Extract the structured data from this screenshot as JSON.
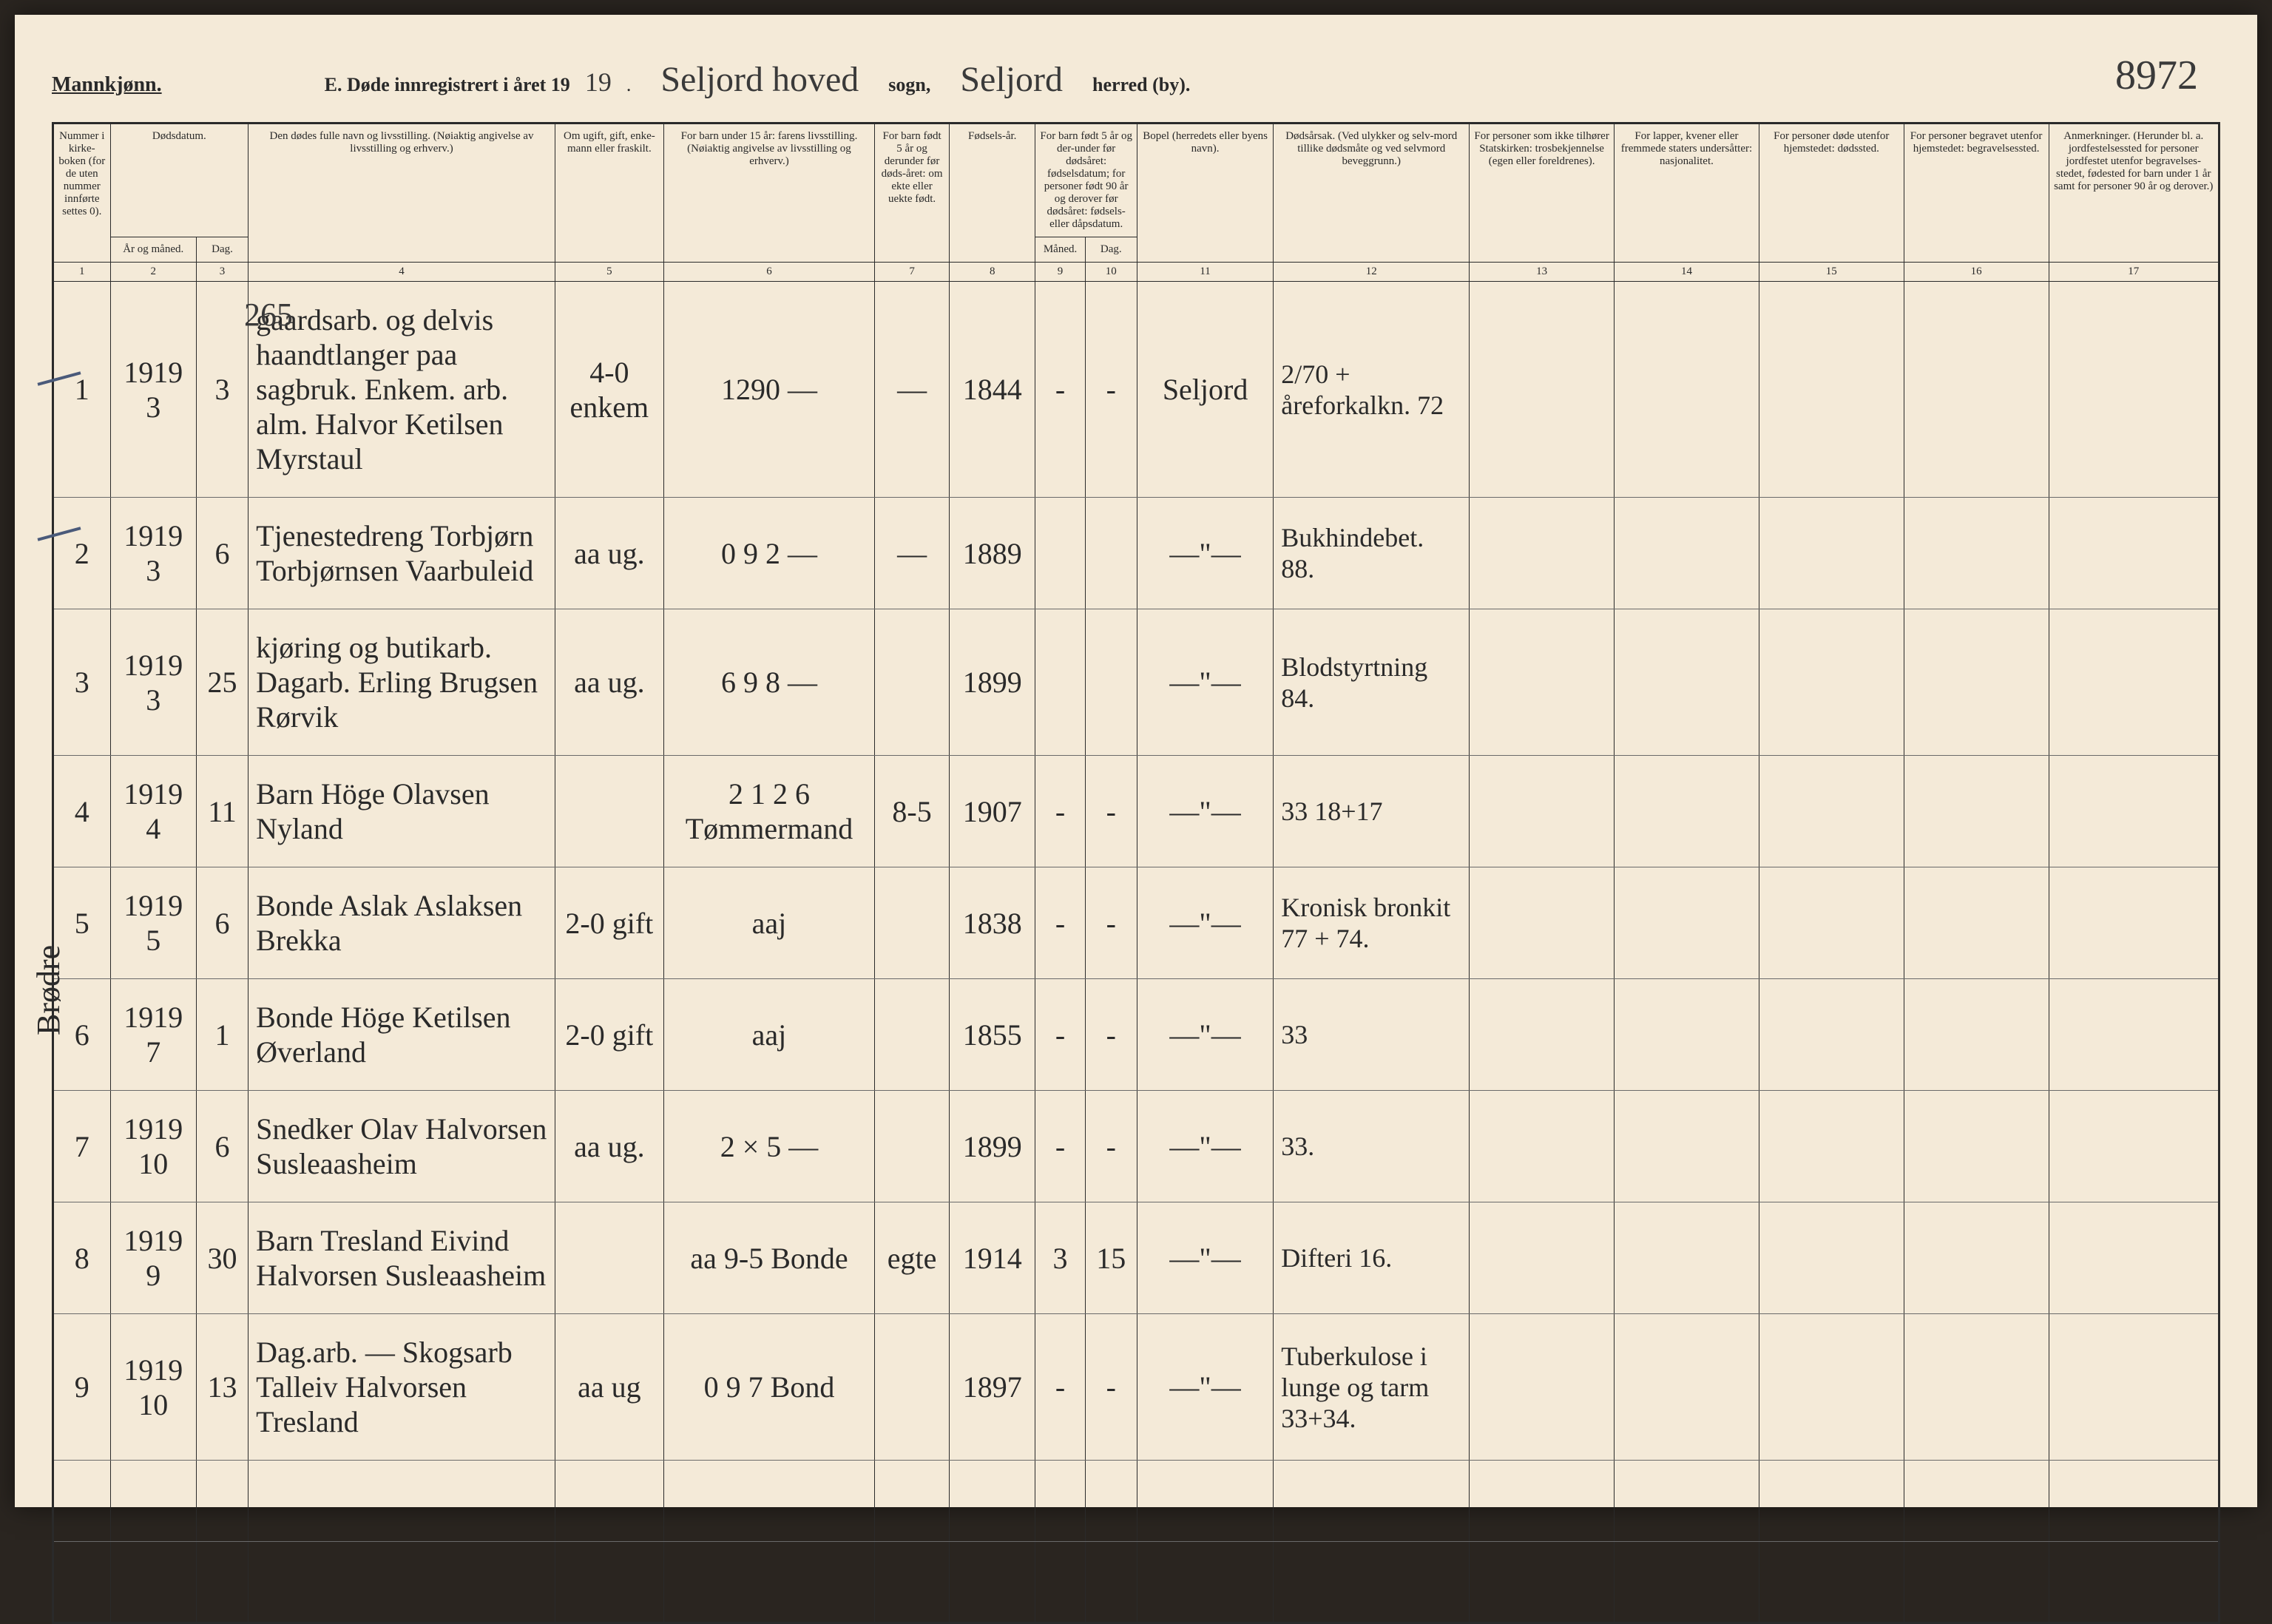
{
  "page_number": "8972",
  "side_annotation": "Brødre",
  "page_ref": "265",
  "header": {
    "gender": "Mannkjønn.",
    "title_prefix": "E.  Døde innregistrert i året 19",
    "year_suffix": "19",
    "punctuation": ".",
    "sogn_value": "Seljord hoved",
    "sogn_label": "sogn,",
    "herred_value": "Seljord",
    "herred_label": "herred (by)."
  },
  "columns": [
    {
      "num": "1",
      "label": "Nummer i kirke-boken (for de uten nummer innførte settes 0).",
      "width": "60"
    },
    {
      "num": "2",
      "label": "År og måned.",
      "width": "60"
    },
    {
      "num": "3",
      "label": "Dag.",
      "width": "55"
    },
    {
      "num": "4",
      "label": "Den dødes fulle navn og livsstilling. (Nøiaktig angivelse av livsstilling og erhverv.)",
      "width": "360"
    },
    {
      "num": "5",
      "label": "Om ugift, gift, enke-mann eller fraskilt.",
      "width": "80"
    },
    {
      "num": "6",
      "label": "For barn under 15 år: farens livsstilling. (Nøiaktig angivelse av livsstilling og erhverv.)",
      "width": "210"
    },
    {
      "num": "7",
      "label": "For barn født 5 år og derunder før døds-året: om ekte eller uekte født.",
      "width": "80"
    },
    {
      "num": "8",
      "label": "Fødsels-år.",
      "width": "70"
    },
    {
      "num": "9",
      "label": "Måned.",
      "width": "55"
    },
    {
      "num": "10",
      "label": "Dag.",
      "width": "55"
    },
    {
      "num": "11",
      "label": "Bopel (herredets eller byens navn).",
      "width": "160"
    },
    {
      "num": "12",
      "label": "Dødsårsak. (Ved ulykker og selv-mord tillike dødsmåte og ved selvmord beveggrunn.)",
      "width": "230"
    },
    {
      "num": "13",
      "label": "For personer som ikke tilhører Statskirken: trosbekjennelse (egen eller foreldrenes).",
      "width": "170"
    },
    {
      "num": "14",
      "label": "For lapper, kvener eller fremmede staters undersåtter: nasjonalitet.",
      "width": "170"
    },
    {
      "num": "15",
      "label": "For personer døde utenfor hjemstedet: dødssted.",
      "width": "170"
    },
    {
      "num": "16",
      "label": "For personer begravet utenfor hjemstedet: begravelsessted.",
      "width": "170"
    },
    {
      "num": "17",
      "label": "Anmerkninger. (Herunder bl. a. jordfestelsessted for personer jordfestet utenfor begravelses-stedet, fødested for barn under 1 år samt for personer 90 år og derover.)",
      "width": "200"
    }
  ],
  "header_groups": {
    "dodsdatum": "Dødsdatum.",
    "fodselsdatum": "For barn født 5 år og der-under før dødsåret: fødselsdatum; for personer født 90 år og derover før dødsåret: fødsels- eller dåpsdatum."
  },
  "rows": [
    {
      "n": "1",
      "yr": "1919",
      "mo": "3",
      "dg": "3",
      "name": "gaardsarb. og delvis haandtlanger paa sagbruk. Enkem. arb. alm. Halvor Ketilsen Myrstaul",
      "civ": "4-0 enkem",
      "parent": "1290 —",
      "ekte": "—",
      "fyr": "1844",
      "fmo": "-",
      "fdg": "-",
      "bopel": "Seljord",
      "cause": "2/70 + åreforkalkn. 72"
    },
    {
      "n": "2",
      "yr": "1919",
      "mo": "3",
      "dg": "6",
      "name": "Tjenestedreng Torbjørn Torbjørnsen Vaarbuleid",
      "civ": "aa ug.",
      "parent": "0 9 2 —",
      "ekte": "—",
      "fyr": "1889",
      "fmo": "",
      "fdg": "",
      "bopel": "—\"—",
      "cause": "Bukhindebet. 88."
    },
    {
      "n": "3",
      "yr": "1919",
      "mo": "3",
      "dg": "25",
      "name": "kjøring og butikarb. Dagarb. Erling Brugsen Rørvik",
      "civ": "aa ug.",
      "parent": "6 9 8 —",
      "ekte": "",
      "fyr": "1899",
      "fmo": "",
      "fdg": "",
      "bopel": "—\"—",
      "cause": "Blodstyrtning 84."
    },
    {
      "n": "4",
      "yr": "1919",
      "mo": "4",
      "dg": "11",
      "name": "Barn Höge Olavsen Nyland",
      "civ": "",
      "parent": "2 1 2 6 Tømmermand",
      "ekte": "8-5",
      "fyr": "1907",
      "fmo": "-",
      "fdg": "-",
      "bopel": "—\"—",
      "cause": "33 18+17"
    },
    {
      "n": "5",
      "yr": "1919",
      "mo": "5",
      "dg": "6",
      "name": "Bonde Aslak Aslaksen Brekka",
      "civ": "2-0 gift",
      "parent": "aaj",
      "ekte": "",
      "fyr": "1838",
      "fmo": "-",
      "fdg": "-",
      "bopel": "—\"—",
      "cause": "Kronisk bronkit 77 + 74."
    },
    {
      "n": "6",
      "yr": "1919",
      "mo": "7",
      "dg": "1",
      "name": "Bonde Höge Ketilsen Øverland",
      "civ": "2-0 gift",
      "parent": "aaj",
      "ekte": "",
      "fyr": "1855",
      "fmo": "-",
      "fdg": "-",
      "bopel": "—\"—",
      "cause": "33"
    },
    {
      "n": "7",
      "yr": "1919",
      "mo": "10",
      "dg": "6",
      "name": "Snedker Olav Halvorsen Susleaasheim",
      "civ": "aa ug.",
      "parent": "2 × 5 —",
      "ekte": "",
      "fyr": "1899",
      "fmo": "-",
      "fdg": "-",
      "bopel": "—\"—",
      "cause": "33."
    },
    {
      "n": "8",
      "yr": "1919",
      "mo": "9",
      "dg": "30",
      "name": "Barn Tresland Eivind Halvorsen Susleaasheim",
      "civ": "",
      "parent": "aa 9-5 Bonde",
      "ekte": "egte",
      "fyr": "1914",
      "fmo": "3",
      "fdg": "15",
      "bopel": "—\"—",
      "cause": "Difteri 16."
    },
    {
      "n": "9",
      "yr": "1919",
      "mo": "10",
      "dg": "13",
      "name": "Dag.arb. — Skogsarb Talleiv Halvorsen Tresland",
      "civ": "aa ug",
      "parent": "0 9 7 Bond",
      "ekte": "",
      "fyr": "1897",
      "fmo": "-",
      "fdg": "-",
      "bopel": "—\"—",
      "cause": "Tuberkulose i lunge og tarm 33+34."
    }
  ],
  "blank_rows": 2,
  "styling": {
    "paper_bg": "#f4ead8",
    "ink_color": "#2a2a2a",
    "handwriting_color": "#3a3a3a",
    "tick_color": "#4a5a7a",
    "border_color": "#2a2a2a",
    "handwriting_font": "Brush Script MT, cursive",
    "print_font": "Georgia, serif"
  }
}
